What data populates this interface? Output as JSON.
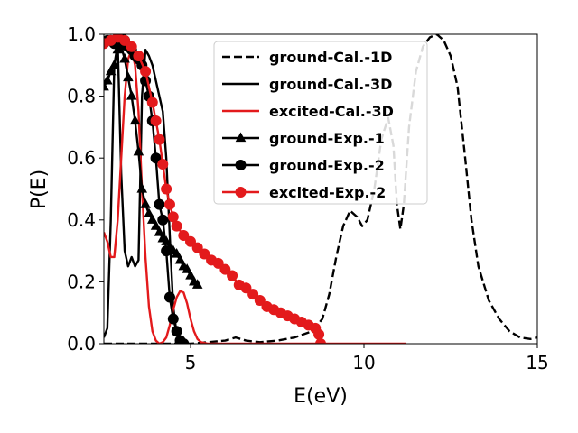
{
  "chart_data": {
    "type": "line",
    "title": "",
    "xlabel": "E(eV)",
    "ylabel": "P(E)",
    "xlim": [
      2.5,
      15
    ],
    "ylim": [
      0,
      1
    ],
    "xticks": [
      5,
      10,
      15
    ],
    "yticks": [
      0.0,
      0.2,
      0.4,
      0.6,
      0.8,
      1.0
    ],
    "xtick_labels": [
      "5",
      "10",
      "15"
    ],
    "ytick_labels": [
      "0.0",
      "0.2",
      "0.4",
      "0.6",
      "0.8",
      "1.0"
    ],
    "grid": false,
    "legend_position": "top-right",
    "series": [
      {
        "name": "ground-Cal.-1D",
        "color": "#000000",
        "dash": "dashed",
        "marker": "none",
        "x": [
          2.5,
          3,
          4,
          5,
          5.5,
          6,
          6.3,
          6.6,
          7,
          7.5,
          8,
          8.5,
          8.8,
          9.0,
          9.2,
          9.4,
          9.6,
          9.8,
          9.95,
          10.1,
          10.3,
          10.5,
          10.7,
          10.85,
          10.95,
          11.05,
          11.15,
          11.3,
          11.5,
          11.7,
          11.9,
          12.1,
          12.3,
          12.5,
          12.7,
          12.9,
          13.1,
          13.3,
          13.6,
          13.9,
          14.2,
          14.5,
          14.8,
          15
        ],
        "values": [
          0,
          0,
          0,
          0,
          0.005,
          0.01,
          0.02,
          0.01,
          0.005,
          0.01,
          0.02,
          0.04,
          0.08,
          0.16,
          0.28,
          0.38,
          0.43,
          0.41,
          0.38,
          0.4,
          0.5,
          0.66,
          0.73,
          0.64,
          0.45,
          0.37,
          0.45,
          0.7,
          0.88,
          0.96,
          0.99,
          1.0,
          0.98,
          0.93,
          0.83,
          0.62,
          0.4,
          0.25,
          0.14,
          0.08,
          0.04,
          0.02,
          0.015,
          0.02
        ]
      },
      {
        "name": "ground-Cal.-3D",
        "color": "#000000",
        "dash": "solid",
        "marker": "none",
        "x": [
          2.5,
          2.6,
          2.7,
          2.8,
          2.9,
          3.0,
          3.1,
          3.2,
          3.3,
          3.4,
          3.5,
          3.6,
          3.7,
          3.8,
          3.9,
          4.0,
          4.1,
          4.2,
          4.3,
          4.4,
          4.5,
          4.6,
          4.7,
          4.8,
          4.9
        ],
        "values": [
          0.02,
          0.05,
          0.4,
          0.9,
          0.97,
          0.55,
          0.3,
          0.25,
          0.28,
          0.25,
          0.27,
          0.8,
          0.95,
          0.93,
          0.9,
          0.85,
          0.8,
          0.75,
          0.6,
          0.35,
          0.12,
          0.03,
          0.01,
          0.005,
          0
        ]
      },
      {
        "name": "excited-Cal.-3D",
        "color": "#e31a1c",
        "dash": "solid",
        "marker": "none",
        "x": [
          2.5,
          2.6,
          2.7,
          2.8,
          2.9,
          3.0,
          3.1,
          3.2,
          3.3,
          3.4,
          3.5,
          3.6,
          3.7,
          3.8,
          3.9,
          4.0,
          4.1,
          4.2,
          4.3,
          4.4,
          4.5,
          4.6,
          4.7,
          4.8,
          4.9,
          5.0,
          5.1,
          5.2,
          5.3,
          5.5,
          6,
          7,
          8,
          9,
          10,
          11.2
        ],
        "values": [
          0.36,
          0.33,
          0.28,
          0.28,
          0.4,
          0.6,
          0.8,
          0.92,
          0.95,
          0.9,
          0.75,
          0.5,
          0.28,
          0.12,
          0.04,
          0.01,
          0,
          0.005,
          0.02,
          0.06,
          0.11,
          0.15,
          0.17,
          0.165,
          0.13,
          0.08,
          0.04,
          0.015,
          0.005,
          0,
          0,
          0,
          0,
          0,
          0,
          0
        ]
      },
      {
        "name": "ground-Exp.-1",
        "color": "#000000",
        "dash": "solid",
        "marker": "triangle",
        "x": [
          2.5,
          2.6,
          2.7,
          2.8,
          2.9,
          3.0,
          3.1,
          3.2,
          3.3,
          3.4,
          3.5,
          3.6,
          3.7,
          3.8,
          3.9,
          4.0,
          4.1,
          4.2,
          4.3,
          4.4,
          4.5,
          4.6,
          4.7,
          4.8,
          4.9,
          5.0,
          5.1,
          5.2
        ],
        "values": [
          0.83,
          0.85,
          0.88,
          0.9,
          0.95,
          0.96,
          0.92,
          0.86,
          0.8,
          0.72,
          0.62,
          0.5,
          0.45,
          0.42,
          0.4,
          0.38,
          0.36,
          0.34,
          0.33,
          0.31,
          0.3,
          0.29,
          0.27,
          0.25,
          0.24,
          0.22,
          0.2,
          0.19
        ]
      },
      {
        "name": "ground-Exp.-2",
        "color": "#000000",
        "dash": "solid",
        "marker": "circle",
        "x": [
          2.5,
          2.6,
          2.7,
          2.8,
          2.9,
          3.0,
          3.1,
          3.2,
          3.3,
          3.4,
          3.5,
          3.6,
          3.7,
          3.8,
          3.9,
          4.0,
          4.1,
          4.2,
          4.3,
          4.4,
          4.5,
          4.6,
          4.7,
          4.8
        ],
        "values": [
          0.97,
          0.98,
          0.98,
          0.97,
          0.98,
          0.99,
          0.98,
          0.96,
          0.95,
          0.93,
          0.92,
          0.9,
          0.85,
          0.8,
          0.72,
          0.6,
          0.45,
          0.4,
          0.3,
          0.15,
          0.08,
          0.04,
          0.01,
          0
        ]
      },
      {
        "name": "excited-Exp.-2",
        "color": "#e31a1c",
        "dash": "solid",
        "marker": "circle",
        "x": [
          2.5,
          2.7,
          2.9,
          3.1,
          3.3,
          3.5,
          3.7,
          3.9,
          4.0,
          4.1,
          4.2,
          4.3,
          4.4,
          4.5,
          4.6,
          4.8,
          5.0,
          5.2,
          5.4,
          5.6,
          5.8,
          6.0,
          6.2,
          6.4,
          6.6,
          6.8,
          7.0,
          7.2,
          7.4,
          7.6,
          7.8,
          8.0,
          8.2,
          8.4,
          8.6,
          8.7,
          8.75
        ],
        "values": [
          0.97,
          0.98,
          0.99,
          0.98,
          0.96,
          0.93,
          0.88,
          0.78,
          0.72,
          0.66,
          0.58,
          0.5,
          0.45,
          0.41,
          0.38,
          0.35,
          0.33,
          0.31,
          0.29,
          0.27,
          0.26,
          0.24,
          0.22,
          0.19,
          0.18,
          0.16,
          0.14,
          0.12,
          0.11,
          0.1,
          0.09,
          0.08,
          0.07,
          0.06,
          0.05,
          0.03,
          0
        ]
      }
    ]
  }
}
